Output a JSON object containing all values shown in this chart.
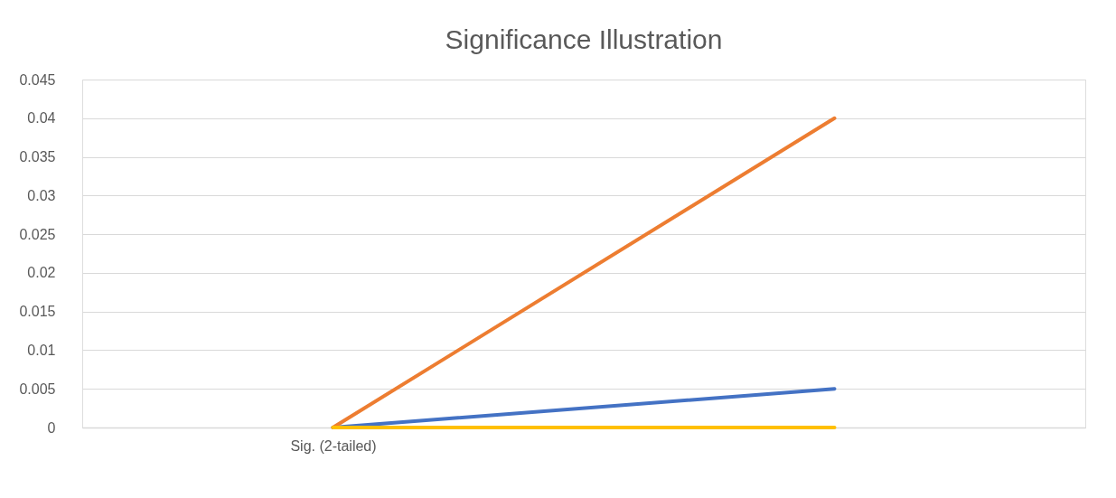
{
  "chart_data": {
    "type": "line",
    "title": "Significance Illustration",
    "categories": [
      "Sig. (2-tailed)",
      null
    ],
    "series": [
      {
        "color": "#4472c4",
        "values": [
          0,
          0.005
        ]
      },
      {
        "color": "#ed7d31",
        "values": [
          0,
          0.04
        ]
      },
      {
        "color": "#ffc000",
        "values": [
          0,
          0
        ]
      }
    ],
    "ylim": [
      0,
      0.045
    ],
    "yticks": [
      0,
      0.005,
      0.01,
      0.015,
      0.02,
      0.025,
      0.03,
      0.035,
      0.04,
      0.045
    ],
    "grid": "y",
    "line_style": "solid",
    "marker": "none"
  }
}
